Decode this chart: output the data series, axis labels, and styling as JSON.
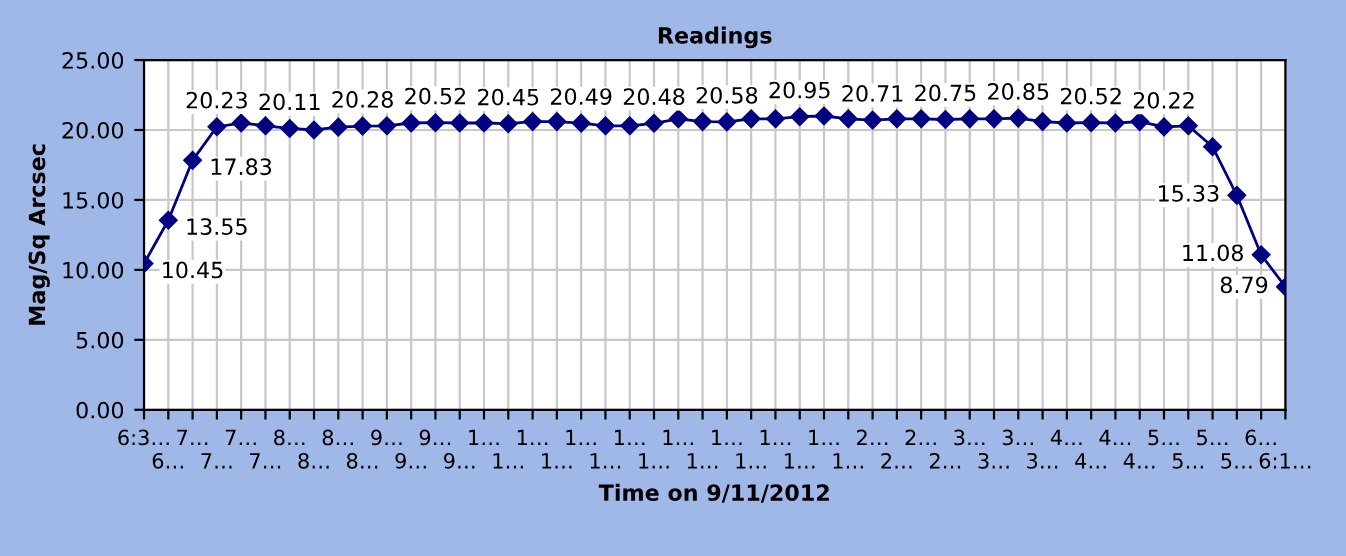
{
  "chart_data": {
    "type": "line",
    "title": "Readings",
    "xlabel": "Time on 9/11/2012",
    "ylabel": "Mag/Sq Arcsec",
    "categories": [
      "6:3…",
      "6…",
      "7…",
      "7…",
      "7…",
      "7…",
      "8…",
      "8…",
      "8…",
      "8…",
      "9…",
      "9…",
      "9…",
      "9…",
      "1…",
      "1…",
      "1…",
      "1…",
      "1…",
      "1…",
      "1…",
      "1…",
      "1…",
      "1…",
      "1…",
      "1…",
      "1…",
      "1…",
      "1…",
      "1…",
      "2…",
      "2…",
      "2…",
      "2…",
      "3…",
      "3…",
      "3…",
      "3…",
      "4…",
      "4…",
      "4…",
      "4…",
      "5…",
      "5…",
      "5…",
      "5…",
      "6…",
      "6:1…"
    ],
    "series": [
      {
        "color": "#000080",
        "values": [
          10.45,
          13.55,
          17.83,
          20.23,
          20.5,
          20.3,
          20.11,
          20.0,
          20.2,
          20.28,
          20.3,
          20.5,
          20.52,
          20.5,
          20.5,
          20.45,
          20.6,
          20.6,
          20.49,
          20.3,
          20.3,
          20.48,
          20.8,
          20.6,
          20.58,
          20.8,
          20.8,
          20.95,
          21.0,
          20.8,
          20.71,
          20.8,
          20.8,
          20.75,
          20.8,
          20.8,
          20.85,
          20.6,
          20.5,
          20.52,
          20.5,
          20.6,
          20.22,
          20.3,
          18.8,
          15.33,
          11.08,
          8.79
        ],
        "value_labels": [
          "10.45",
          "13.55",
          "17.83",
          "20.23",
          null,
          null,
          "20.11",
          null,
          null,
          "20.28",
          null,
          null,
          "20.52",
          null,
          null,
          "20.45",
          null,
          null,
          "20.49",
          null,
          null,
          "20.48",
          null,
          null,
          "20.58",
          null,
          null,
          "20.95",
          null,
          null,
          "20.71",
          null,
          null,
          "20.75",
          null,
          null,
          "20.85",
          null,
          null,
          "20.52",
          null,
          null,
          "20.22",
          null,
          null,
          "15.33",
          "11.08",
          "8.79"
        ]
      }
    ],
    "ylim": [
      0,
      25
    ],
    "yticks": [
      {
        "value": 0,
        "label": "0.00"
      },
      {
        "value": 5,
        "label": "5.00"
      },
      {
        "value": 10,
        "label": "10.00"
      },
      {
        "value": 15,
        "label": "15.00"
      },
      {
        "value": 20,
        "label": "20.00"
      },
      {
        "value": 25,
        "label": "25.00"
      }
    ],
    "grid": true,
    "marker": "diamond",
    "line_style": "solid"
  }
}
